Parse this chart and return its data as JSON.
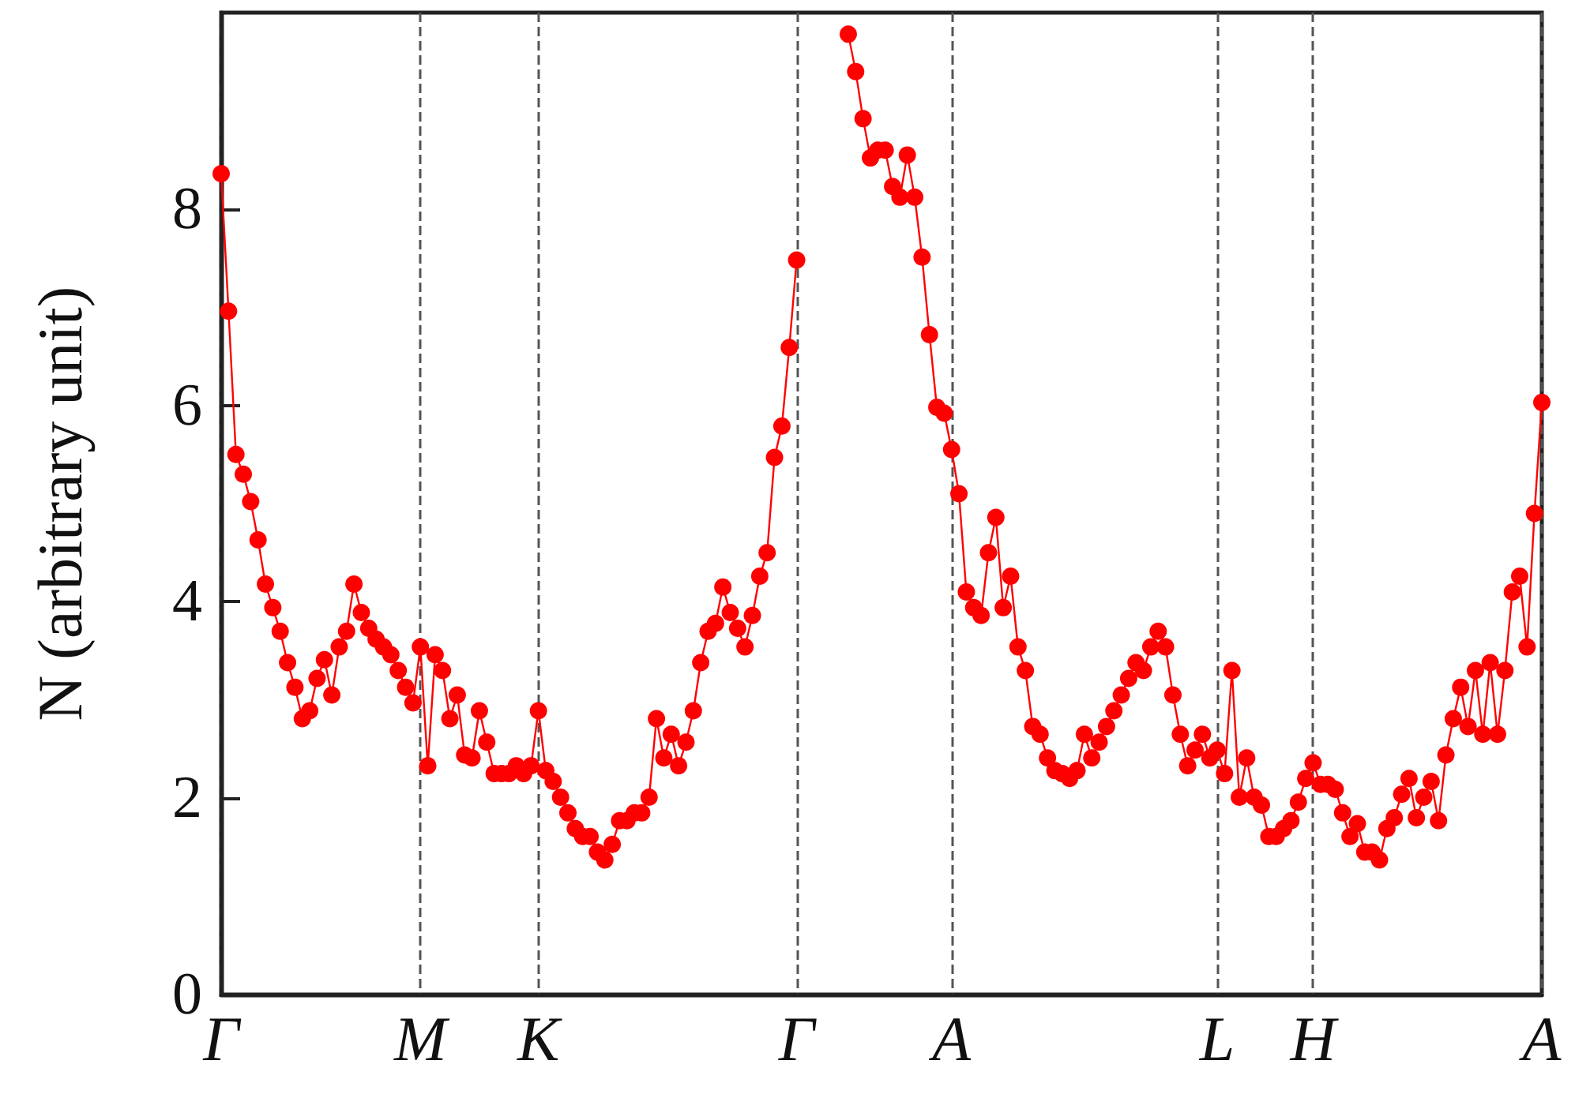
{
  "chart_data": {
    "type": "line",
    "ylabel": "N (arbitrary unit)",
    "categories": [
      "Γ",
      null,
      null,
      null,
      null,
      null,
      null,
      null,
      null,
      null,
      null,
      null,
      null,
      null,
      null,
      null,
      null,
      null,
      null,
      null,
      null,
      null,
      null,
      null,
      null,
      null,
      null,
      "M",
      null,
      null,
      null,
      null,
      null,
      null,
      null,
      null,
      null,
      null,
      null,
      null,
      null,
      null,
      null,
      "K",
      null,
      null,
      null,
      null,
      null,
      null,
      null,
      null,
      null,
      null,
      null,
      null,
      null,
      null,
      null,
      null,
      null,
      null,
      null,
      null,
      null,
      null,
      null,
      null,
      null,
      null,
      null,
      null,
      null,
      null,
      null,
      null,
      null,
      null,
      "Γ",
      null,
      null,
      null,
      null,
      null,
      null,
      null,
      null,
      null,
      null,
      null,
      null,
      null,
      null,
      null,
      null,
      null,
      null,
      null,
      null,
      "A",
      null,
      null,
      null,
      null,
      null,
      null,
      null,
      null,
      null,
      null,
      null,
      null,
      null,
      null,
      null,
      null,
      null,
      null,
      null,
      null,
      null,
      null,
      null,
      null,
      null,
      null,
      null,
      null,
      null,
      null,
      null,
      null,
      null,
      null,
      null,
      "L",
      null,
      null,
      null,
      null,
      null,
      null,
      null,
      null,
      null,
      null,
      null,
      null,
      "H",
      null,
      null,
      null,
      null,
      null,
      null,
      null,
      null,
      null,
      null,
      null,
      null,
      null,
      null,
      null,
      null,
      null,
      null,
      null,
      null,
      null,
      null,
      null,
      null,
      null,
      null,
      null,
      null,
      null,
      null,
      "A"
    ],
    "series": [
      {
        "color": "#ff0000",
        "values": [
          8.36,
          6.96,
          5.5,
          5.3,
          5.02,
          4.63,
          4.18,
          3.94,
          3.7,
          3.38,
          3.13,
          2.81,
          2.89,
          3.22,
          3.41,
          3.05,
          3.54,
          3.7,
          4.18,
          3.89,
          3.73,
          3.62,
          3.54,
          3.46,
          3.3,
          3.13,
          2.97,
          3.54,
          2.33,
          3.46,
          3.3,
          2.81,
          3.05,
          2.44,
          2.41,
          2.89,
          2.57,
          2.25,
          2.25,
          2.25,
          2.33,
          2.25,
          2.33,
          2.89,
          2.28,
          2.17,
          2.01,
          1.85,
          1.69,
          1.61,
          1.61,
          1.45,
          1.37,
          1.53,
          1.77,
          1.77,
          1.85,
          1.85,
          2.01,
          2.81,
          2.41,
          2.65,
          2.33,
          2.57,
          2.89,
          3.38,
          3.7,
          3.78,
          4.15,
          3.89,
          3.73,
          3.54,
          3.86,
          4.26,
          4.5,
          5.47,
          5.79,
          6.59,
          7.48,
          null,
          null,
          null,
          null,
          null,
          null,
          9.78,
          9.4,
          8.92,
          8.52,
          8.6,
          8.6,
          8.23,
          8.12,
          8.55,
          8.12,
          7.51,
          6.72,
          5.98,
          5.92,
          5.55,
          5.1,
          4.1,
          3.94,
          3.86,
          4.5,
          4.86,
          3.94,
          4.26,
          3.54,
          3.3,
          2.73,
          2.65,
          2.41,
          2.28,
          2.25,
          2.2,
          2.28,
          2.65,
          2.41,
          2.57,
          2.73,
          2.89,
          3.05,
          3.22,
          3.38,
          3.3,
          3.54,
          3.7,
          3.54,
          3.05,
          2.65,
          2.33,
          2.49,
          2.65,
          2.41,
          2.49,
          2.25,
          3.3,
          2.01,
          2.41,
          2.01,
          1.93,
          1.61,
          1.61,
          1.69,
          1.77,
          1.96,
          2.2,
          2.36,
          2.14,
          2.14,
          2.09,
          1.85,
          1.61,
          1.74,
          1.45,
          1.45,
          1.37,
          1.69,
          1.8,
          2.04,
          2.2,
          1.8,
          2.01,
          2.17,
          1.77,
          2.44,
          2.81,
          3.13,
          2.73,
          3.3,
          2.65,
          3.38,
          2.65,
          3.3,
          4.1,
          4.26,
          3.54,
          4.9,
          6.03
        ]
      }
    ],
    "ylim": [
      0,
      10
    ],
    "yticks": [
      0,
      2,
      4,
      6,
      8
    ],
    "grid": "x",
    "marker": "circle",
    "line_style": "solid"
  }
}
